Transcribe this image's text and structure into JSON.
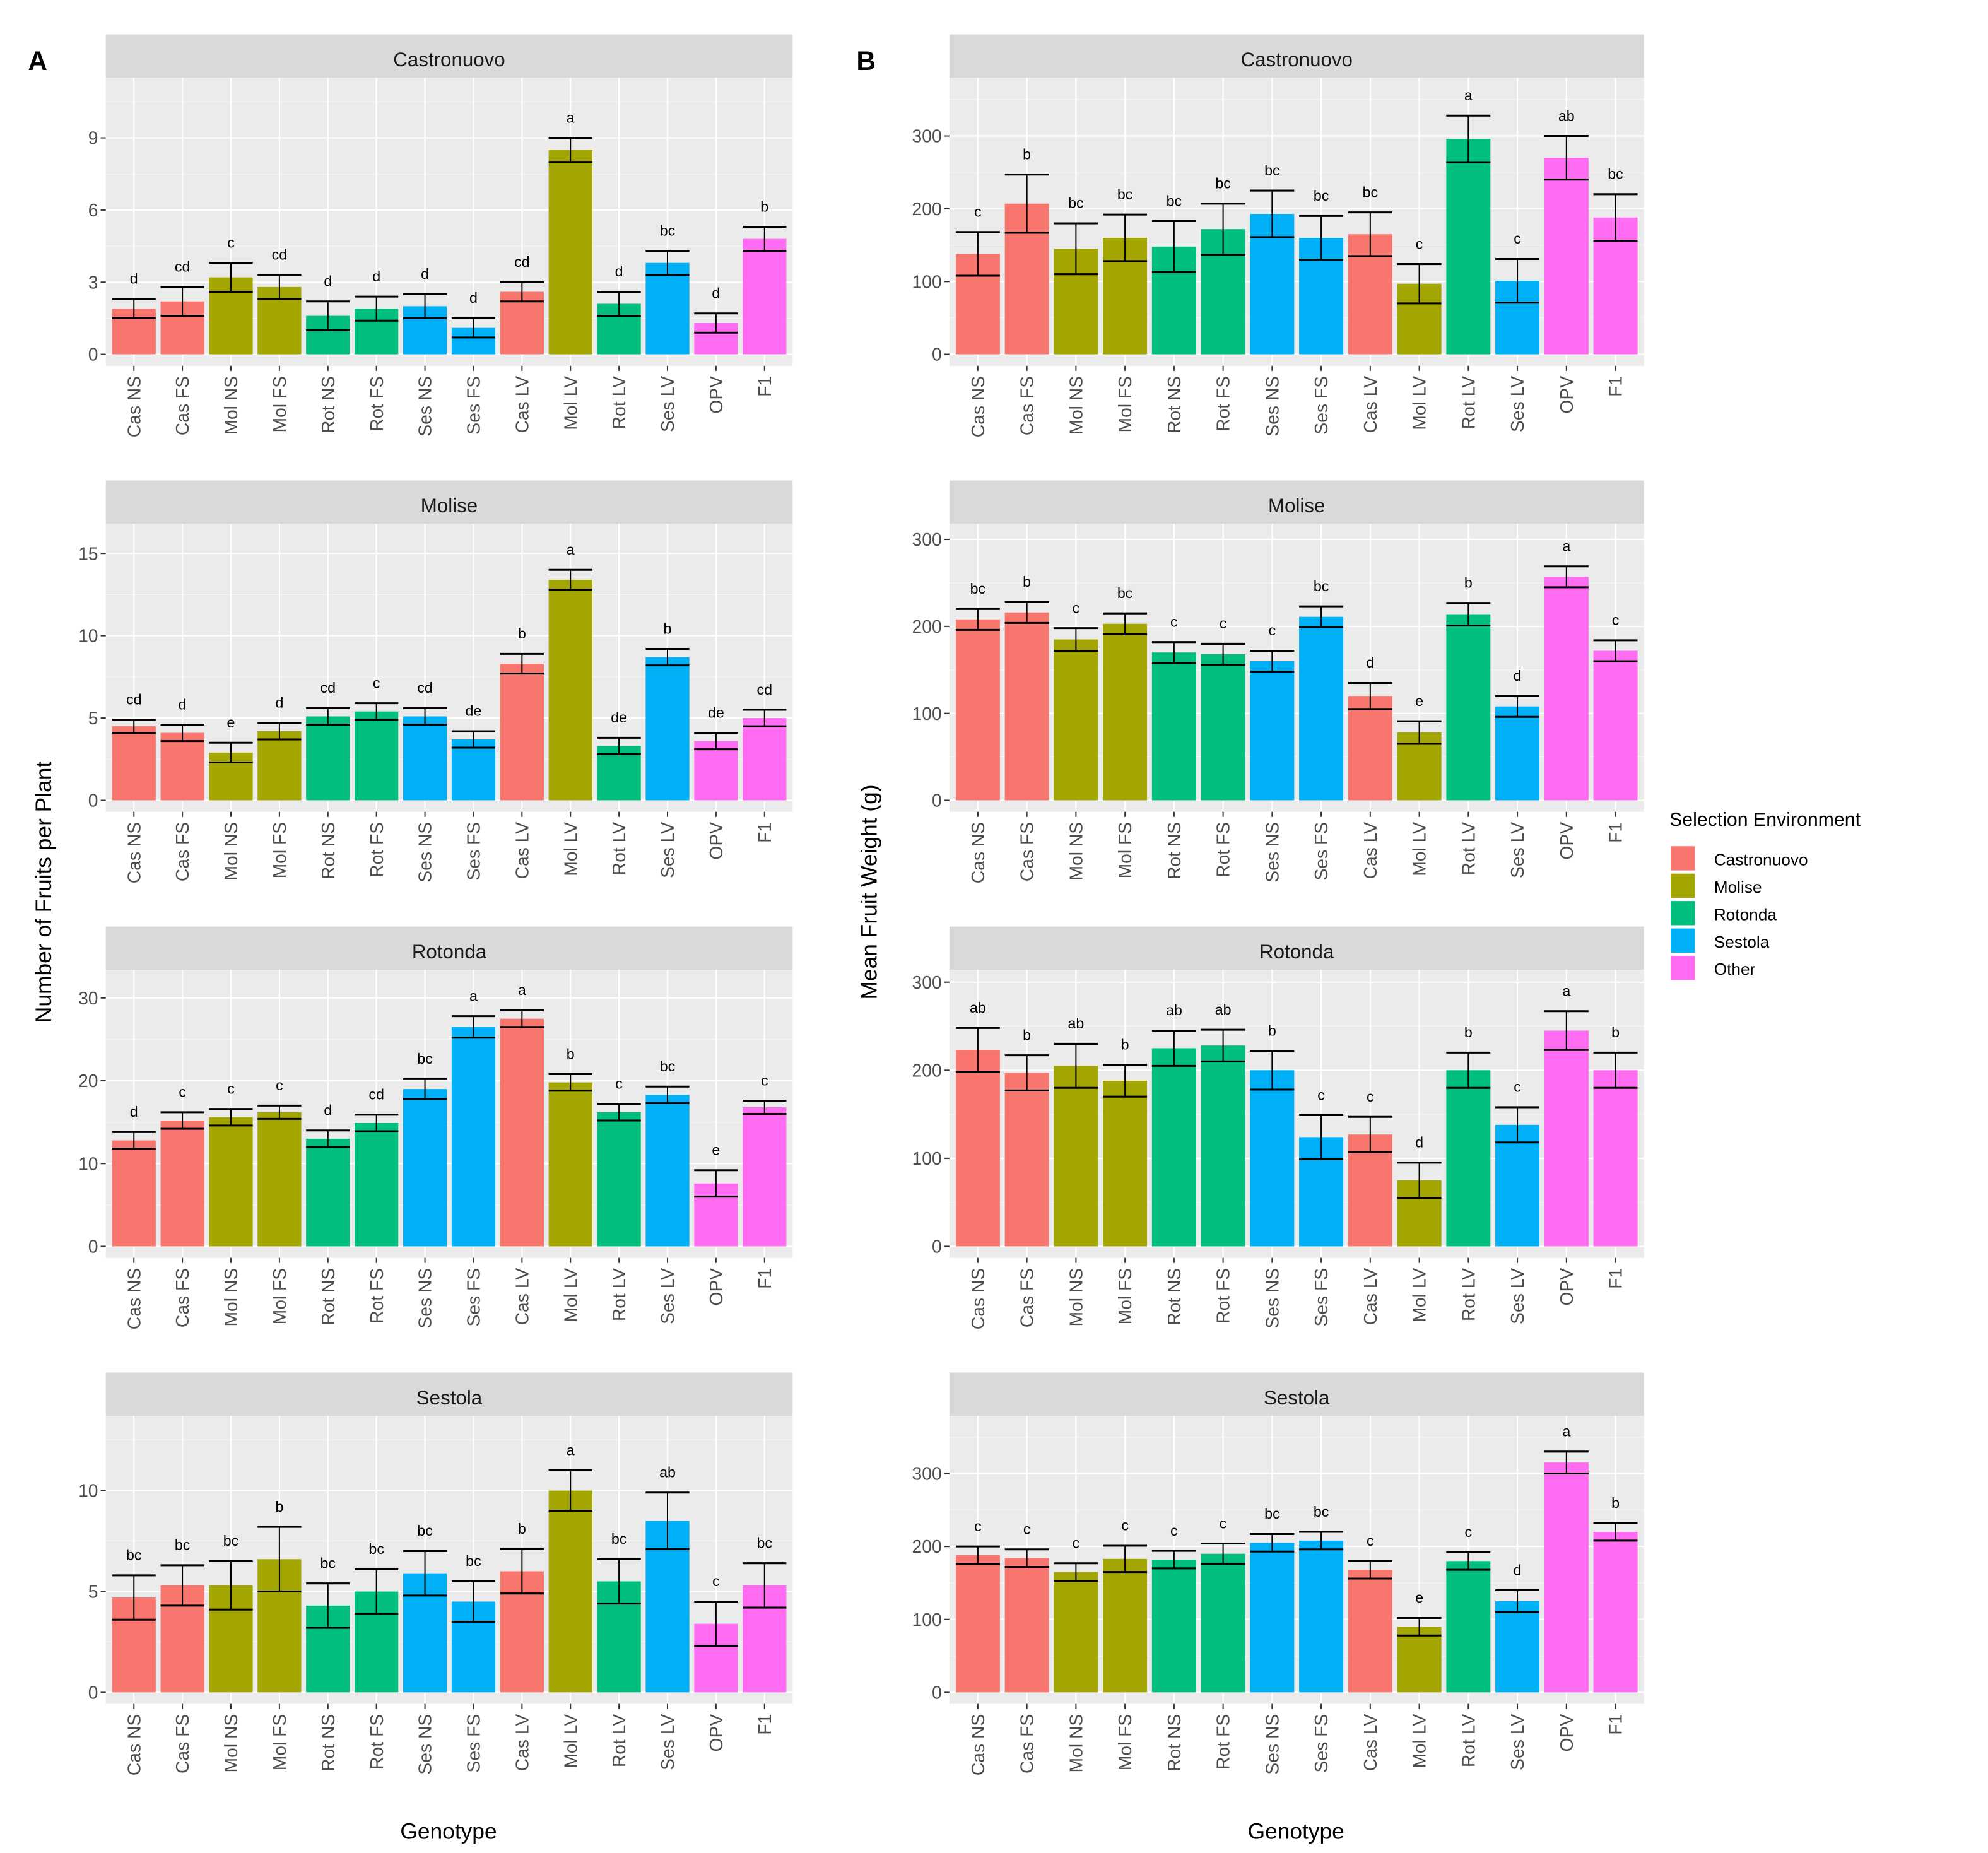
{
  "chart_data": {
    "type": "bar",
    "panel_tags": [
      "A",
      "B"
    ],
    "ylabel_A": "Number of Fruits per Plant",
    "ylabel_B": "Mean Fruit Weight (g)",
    "xlabel": "Genotype",
    "categories": [
      "Cas NS",
      "Cas FS",
      "Mol NS",
      "Mol FS",
      "Rot NS",
      "Rot FS",
      "Ses NS",
      "Ses FS",
      "Cas LV",
      "Mol LV",
      "Rot LV",
      "Ses LV",
      "OPV",
      "F1"
    ],
    "category_group": [
      0,
      0,
      1,
      1,
      2,
      2,
      3,
      3,
      0,
      1,
      2,
      3,
      4,
      4
    ],
    "legend": {
      "title": "Selection Environment",
      "placement": "right",
      "items": [
        "Castronuovo",
        "Molise",
        "Rotonda",
        "Sestola",
        "Other"
      ],
      "colors": [
        "#F8766D",
        "#A3A500",
        "#00BF7D",
        "#00B0F6",
        "#FF6CF2"
      ]
    },
    "panels": [
      {
        "column": "A",
        "facet": "Castronuovo",
        "ylim": [
          -0.5,
          11.5
        ],
        "ticks": [
          0,
          3,
          6,
          9
        ],
        "values": [
          1.9,
          2.2,
          3.2,
          2.8,
          1.6,
          1.9,
          2.0,
          1.1,
          2.6,
          8.5,
          2.1,
          3.8,
          1.3,
          4.8
        ],
        "errors": [
          0.4,
          0.6,
          0.6,
          0.5,
          0.6,
          0.5,
          0.5,
          0.4,
          0.4,
          0.5,
          0.5,
          0.5,
          0.4,
          0.5
        ],
        "letters": [
          "d",
          "cd",
          "c",
          "cd",
          "d",
          "d",
          "d",
          "d",
          "cd",
          "a",
          "d",
          "bc",
          "d",
          "b"
        ]
      },
      {
        "column": "A",
        "facet": "Molise",
        "ylim": [
          -0.7,
          16.8
        ],
        "ticks": [
          0,
          5,
          10,
          15
        ],
        "values": [
          4.5,
          4.1,
          2.9,
          4.2,
          5.1,
          5.4,
          5.1,
          3.7,
          8.3,
          13.4,
          3.3,
          8.7,
          3.6,
          5.0
        ],
        "errors": [
          0.4,
          0.5,
          0.6,
          0.5,
          0.5,
          0.5,
          0.5,
          0.5,
          0.6,
          0.6,
          0.5,
          0.5,
          0.5,
          0.5
        ],
        "letters": [
          "cd",
          "d",
          "e",
          "d",
          "cd",
          "c",
          "cd",
          "de",
          "b",
          "a",
          "de",
          "b",
          "de",
          "cd"
        ]
      },
      {
        "column": "A",
        "facet": "Rotonda",
        "ylim": [
          -1.4,
          33.4
        ],
        "ticks": [
          0,
          10,
          20,
          30
        ],
        "values": [
          12.8,
          15.2,
          15.6,
          16.2,
          13.0,
          14.9,
          19.0,
          26.5,
          27.5,
          19.8,
          16.2,
          18.3,
          7.6,
          16.8
        ],
        "errors": [
          1.0,
          1.0,
          1.0,
          0.8,
          1.0,
          1.0,
          1.2,
          1.3,
          1.0,
          1.0,
          1.0,
          1.0,
          1.6,
          0.8
        ],
        "letters": [
          "d",
          "c",
          "c",
          "c",
          "d",
          "cd",
          "bc",
          "a",
          "a",
          "b",
          "c",
          "bc",
          "e",
          "c"
        ]
      },
      {
        "column": "A",
        "facet": "Sestola",
        "ylim": [
          -0.6,
          13.7
        ],
        "ticks": [
          0,
          5,
          10
        ],
        "values": [
          4.7,
          5.3,
          5.3,
          6.6,
          4.3,
          5.0,
          5.9,
          4.5,
          6.0,
          10.0,
          5.5,
          8.5,
          3.4,
          5.3
        ],
        "errors": [
          1.1,
          1.0,
          1.2,
          1.6,
          1.1,
          1.1,
          1.1,
          1.0,
          1.1,
          1.0,
          1.1,
          1.4,
          1.1,
          1.1
        ],
        "letters": [
          "bc",
          "bc",
          "bc",
          "b",
          "bc",
          "bc",
          "bc",
          "bc",
          "b",
          "a",
          "bc",
          "ab",
          "c",
          "bc"
        ]
      },
      {
        "column": "B",
        "facet": "Castronuovo",
        "ylim": [
          -16,
          380
        ],
        "ticks": [
          0,
          100,
          200,
          300
        ],
        "values": [
          138,
          207,
          145,
          160,
          148,
          172,
          193,
          160,
          165,
          97,
          296,
          101,
          270,
          188
        ],
        "errors": [
          30,
          40,
          35,
          32,
          35,
          35,
          32,
          30,
          30,
          27,
          32,
          30,
          30,
          32
        ],
        "letters": [
          "c",
          "b",
          "bc",
          "bc",
          "bc",
          "bc",
          "bc",
          "bc",
          "bc",
          "c",
          "a",
          "c",
          "ab",
          "bc"
        ]
      },
      {
        "column": "B",
        "facet": "Molise",
        "ylim": [
          -13,
          318
        ],
        "ticks": [
          0,
          100,
          200,
          300
        ],
        "values": [
          208,
          216,
          185,
          203,
          170,
          168,
          160,
          211,
          120,
          78,
          214,
          108,
          257,
          172
        ],
        "errors": [
          12,
          12,
          13,
          12,
          12,
          12,
          12,
          12,
          15,
          13,
          13,
          12,
          12,
          12
        ],
        "letters": [
          "bc",
          "b",
          "c",
          "bc",
          "c",
          "c",
          "c",
          "bc",
          "d",
          "e",
          "b",
          "d",
          "a",
          "c"
        ]
      },
      {
        "column": "B",
        "facet": "Rotonda",
        "ylim": [
          -13,
          314
        ],
        "ticks": [
          0,
          100,
          200,
          300
        ],
        "values": [
          223,
          197,
          205,
          188,
          225,
          228,
          200,
          124,
          127,
          75,
          200,
          138,
          245,
          200
        ],
        "errors": [
          25,
          20,
          25,
          18,
          20,
          18,
          22,
          25,
          20,
          20,
          20,
          20,
          22,
          20
        ],
        "letters": [
          "ab",
          "b",
          "ab",
          "b",
          "ab",
          "ab",
          "b",
          "c",
          "c",
          "d",
          "b",
          "c",
          "a",
          "b"
        ]
      },
      {
        "column": "B",
        "facet": "Sestola",
        "ylim": [
          -16,
          379
        ],
        "ticks": [
          0,
          100,
          200,
          300
        ],
        "values": [
          188,
          184,
          165,
          183,
          182,
          190,
          205,
          208,
          168,
          90,
          180,
          125,
          315,
          220
        ],
        "errors": [
          12,
          12,
          12,
          18,
          12,
          14,
          12,
          12,
          12,
          12,
          12,
          15,
          15,
          12
        ],
        "letters": [
          "c",
          "c",
          "c",
          "c",
          "c",
          "c",
          "bc",
          "bc",
          "c",
          "e",
          "c",
          "d",
          "a",
          "b"
        ]
      }
    ]
  }
}
